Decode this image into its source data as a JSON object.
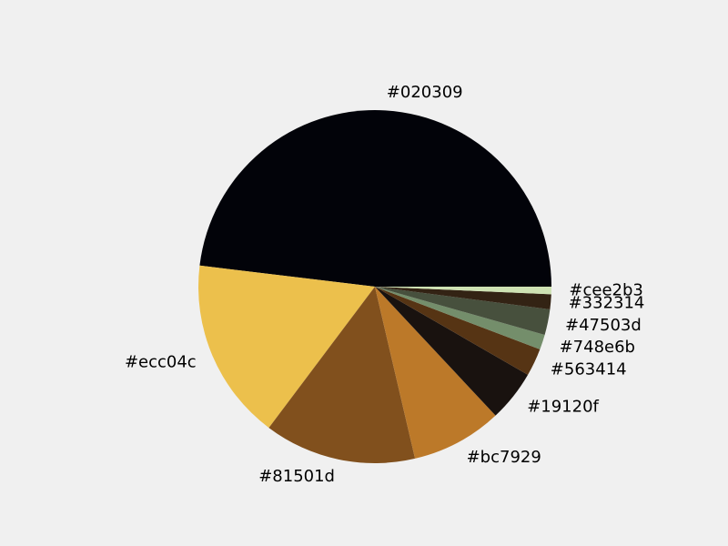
{
  "chart_data": {
    "type": "pie",
    "title": "",
    "start_angle_deg": 0,
    "direction": "counterclockwise",
    "slices": [
      {
        "label": "#020309",
        "value": 49.1,
        "color": "#020309"
      },
      {
        "label": "#ecc04c",
        "value": 17.0,
        "color": "#ecc04c"
      },
      {
        "label": "#81501d",
        "value": 14.2,
        "color": "#81501d"
      },
      {
        "label": "#bc7929",
        "value": 8.5,
        "color": "#bc7929"
      },
      {
        "label": "#19120f",
        "value": 4.8,
        "color": "#19120f"
      },
      {
        "label": "#563414",
        "value": 2.6,
        "color": "#563414"
      },
      {
        "label": "#748e6b",
        "value": 1.4,
        "color": "#748e6b"
      },
      {
        "label": "#47503d",
        "value": 2.4,
        "color": "#47503d"
      },
      {
        "label": "#332314",
        "value": 1.4,
        "color": "#332314"
      },
      {
        "label": "#cee2b3",
        "value": 0.7,
        "color": "#cee2b3"
      }
    ]
  }
}
